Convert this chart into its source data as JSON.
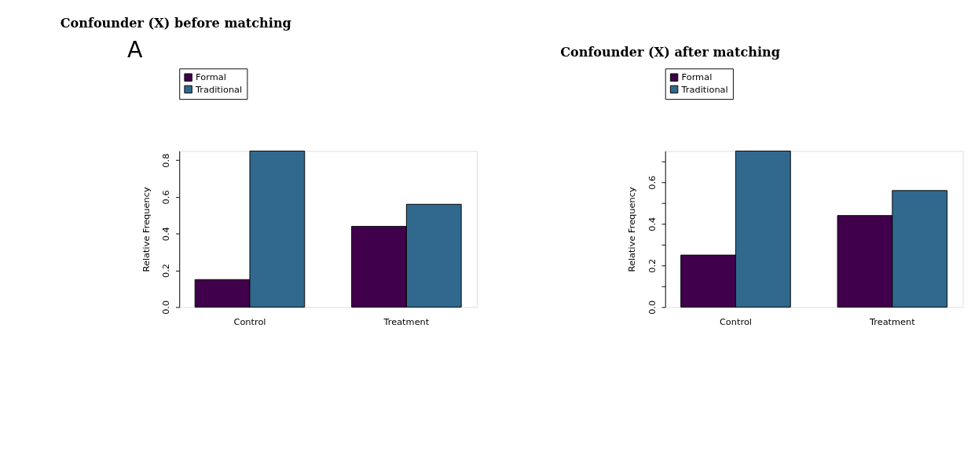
{
  "chart_data": [
    {
      "type": "bar",
      "title": "Confounder (X) before matching",
      "ylabel": "Relative Frequency",
      "categories": [
        "Control",
        "Treatment"
      ],
      "series": [
        {
          "name": "Formal",
          "color": "#40004b",
          "values": [
            0.15,
            0.44
          ]
        },
        {
          "name": "Traditional",
          "color": "#31688e",
          "values": [
            0.85,
            0.56
          ]
        }
      ],
      "ylim": [
        0,
        0.85
      ],
      "yticks": [
        {
          "value": 0,
          "label": "0.0"
        },
        0.2,
        0.4,
        0.6,
        0.8
      ],
      "grid": false,
      "legend": "top",
      "annotations": [
        "A"
      ]
    },
    {
      "type": "bar",
      "title": "Confounder (X) after matching",
      "ylabel": "Relative Frequency",
      "categories": [
        "Control",
        "Treatment"
      ],
      "series": [
        {
          "name": "Formal",
          "color": "#40004b",
          "values": [
            0.25,
            0.44
          ]
        },
        {
          "name": "Traditional",
          "color": "#31688e",
          "values": [
            0.75,
            0.56
          ]
        }
      ],
      "ylim": [
        0,
        0.75
      ],
      "yticks": [
        {
          "value": 0,
          "label": "0.0"
        },
        {
          "value": 0.1,
          "label": null
        },
        0.2,
        {
          "value": 0.3,
          "label": null
        },
        0.4,
        {
          "value": 0.5,
          "label": null
        },
        0.6,
        {
          "value": 0.7,
          "label": null
        }
      ],
      "grid": false,
      "legend": "top"
    }
  ]
}
